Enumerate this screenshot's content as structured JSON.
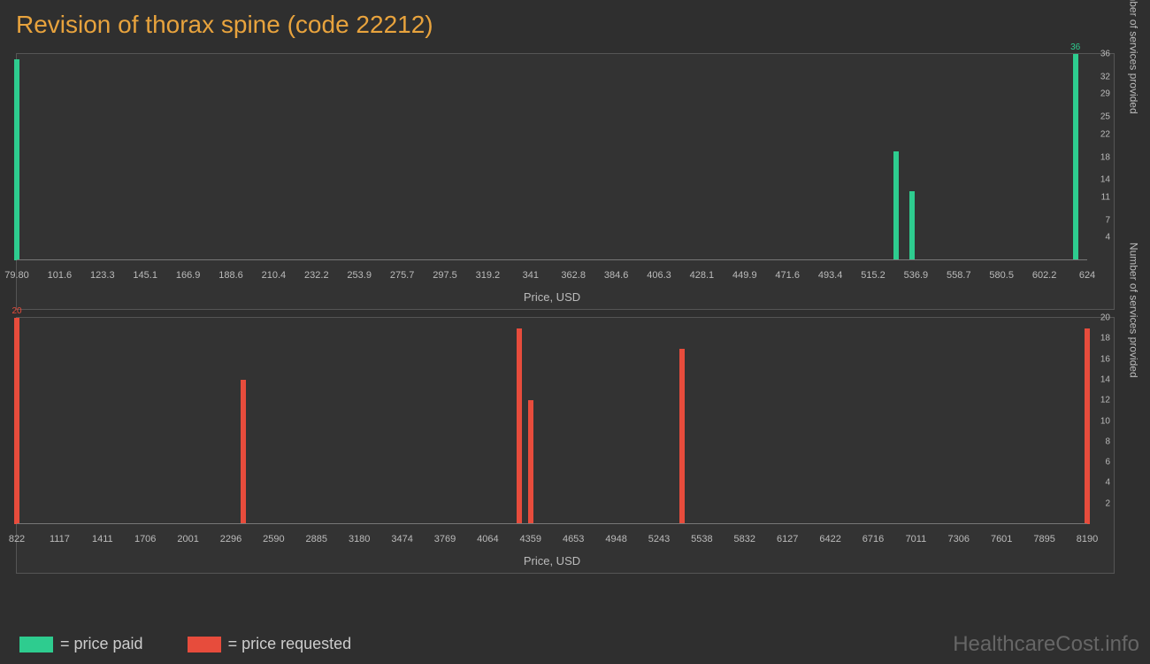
{
  "title": "Revision of thorax spine (code 22212)",
  "watermark": "HealthcareCost.info",
  "colors": {
    "paid": "#2ecc8f",
    "requested": "#e74c3c",
    "background": "#2f2f2f",
    "panel": "#333333",
    "border": "#555555",
    "text": "#bbbbbb",
    "title": "#e8a33d"
  },
  "chart_top": {
    "type": "bar",
    "color_key": "paid",
    "x_label": "Price, USD",
    "y_label": "Number of services provided",
    "x_min": 79.8,
    "x_max": 624,
    "x_ticks": [
      "79.80",
      "101.6",
      "123.3",
      "145.1",
      "166.9",
      "188.6",
      "210.4",
      "232.2",
      "253.9",
      "275.7",
      "297.5",
      "319.2",
      "341",
      "362.8",
      "384.6",
      "406.3",
      "428.1",
      "449.9",
      "471.6",
      "493.4",
      "515.2",
      "536.9",
      "558.7",
      "580.5",
      "602.2",
      "624"
    ],
    "y_max": 36,
    "y_ticks": [
      4,
      7,
      11,
      14,
      18,
      22,
      25,
      29,
      32,
      36
    ],
    "bars": [
      {
        "x": 79.8,
        "y": 35
      },
      {
        "x": 527,
        "y": 19
      },
      {
        "x": 535,
        "y": 12
      },
      {
        "x": 618,
        "y": 36,
        "label": "36"
      }
    ]
  },
  "chart_bottom": {
    "type": "bar",
    "color_key": "requested",
    "x_label": "Price, USD",
    "y_label": "Number of services provided",
    "x_min": 822,
    "x_max": 8190,
    "x_ticks": [
      "822",
      "1117",
      "1411",
      "1706",
      "2001",
      "2296",
      "2590",
      "2885",
      "3180",
      "3474",
      "3769",
      "4064",
      "4359",
      "4653",
      "4948",
      "5243",
      "5538",
      "5832",
      "6127",
      "6422",
      "6716",
      "7011",
      "7306",
      "7601",
      "7895",
      "8190"
    ],
    "y_max": 20,
    "y_ticks": [
      2,
      4,
      6,
      8,
      10,
      12,
      14,
      16,
      18,
      20
    ],
    "bars": [
      {
        "x": 822,
        "y": 20,
        "label": "20"
      },
      {
        "x": 2380,
        "y": 14
      },
      {
        "x": 4280,
        "y": 19
      },
      {
        "x": 4359,
        "y": 12
      },
      {
        "x": 5400,
        "y": 17
      },
      {
        "x": 8190,
        "y": 19
      }
    ]
  },
  "legend": [
    {
      "color_key": "paid",
      "label": "= price paid"
    },
    {
      "color_key": "requested",
      "label": "= price requested"
    }
  ]
}
